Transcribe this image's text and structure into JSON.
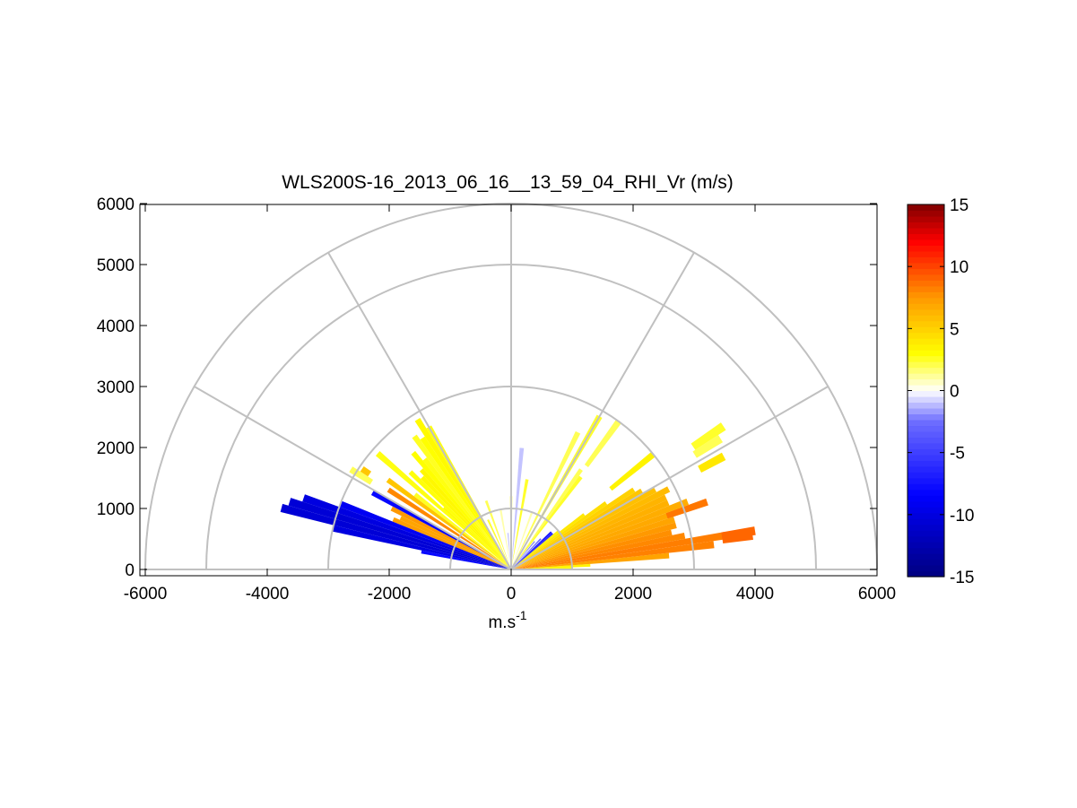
{
  "chart_data": {
    "type": "heatmap",
    "subtype": "polar RHI sector plot",
    "title": "WLS200S-16_2013_06_16__13_59_04_RHI_Vr (m/s)",
    "xlabel": {
      "base": "m.s",
      "sup": "-1"
    },
    "ylabel": "",
    "xlim": [
      -6000,
      6000
    ],
    "ylim": [
      0,
      6000
    ],
    "xticks": [
      -6000,
      -4000,
      -2000,
      0,
      2000,
      4000,
      6000
    ],
    "yticks": [
      0,
      1000,
      2000,
      3000,
      4000,
      5000,
      6000
    ],
    "xtick_labels": [
      "-6000",
      "-4000",
      "-2000",
      "0",
      "2000",
      "4000",
      "6000"
    ],
    "ytick_labels": [
      "0",
      "1000",
      "2000",
      "3000",
      "4000",
      "5000",
      "6000"
    ],
    "polar_grid": {
      "range_rings": [
        1000,
        3000,
        5000,
        6000
      ],
      "spoke_angles_deg": [
        0,
        30,
        60,
        90,
        120,
        150,
        180
      ]
    },
    "colorbar": {
      "range": [
        -15,
        15
      ],
      "ticks": [
        15,
        10,
        5,
        0,
        -5,
        -10,
        -15
      ],
      "tick_labels": [
        "15",
        "10",
        "5",
        "0",
        "-5",
        "-10",
        "-15"
      ],
      "colormap": [
        "#00007f",
        "#0000ff",
        "#6f6fff",
        "#ffffff",
        "#ffff00",
        "#ff9900",
        "#ff0000",
        "#7f0000"
      ]
    },
    "beams": [
      {
        "az": 1.0,
        "r0": 0,
        "r1": 1000,
        "v": 3.0
      },
      {
        "az": 3.0,
        "r0": 0,
        "r1": 1300,
        "v": 3.5
      },
      {
        "az": 5.0,
        "r0": 0,
        "r1": 2600,
        "v": 7.0
      },
      {
        "az": 7.0,
        "r0": 0,
        "r1": 3350,
        "v": 8.2
      },
      {
        "az": 9.0,
        "r0": 0,
        "r1": 3550,
        "v": 8.3
      },
      {
        "az": 11.0,
        "r0": 0,
        "r1": 2900,
        "v": 8.0
      },
      {
        "az": 13.0,
        "r0": 0,
        "r1": 2700,
        "v": 7.8
      },
      {
        "az": 15.0,
        "r0": 0,
        "r1": 2800,
        "v": 7.5
      },
      {
        "az": 17.0,
        "r0": 0,
        "r1": 2800,
        "v": 7.0
      },
      {
        "az": 19.0,
        "r0": 0,
        "r1": 3000,
        "v": 6.8
      },
      {
        "az": 21.0,
        "r0": 0,
        "r1": 3100,
        "v": 6.6
      },
      {
        "az": 23.0,
        "r0": 0,
        "r1": 2800,
        "v": 6.5
      },
      {
        "az": 25.0,
        "r0": 0,
        "r1": 2800,
        "v": 6.3
      },
      {
        "az": 27.0,
        "r0": 0,
        "r1": 2900,
        "v": 6.0
      },
      {
        "az": 29.0,
        "r0": 0,
        "r1": 2700,
        "v": 5.8
      },
      {
        "az": 31.0,
        "r0": 0,
        "r1": 2500,
        "v": 5.5
      },
      {
        "az": 33.0,
        "r0": 0,
        "r1": 2400,
        "v": 5.0
      },
      {
        "az": 35.0,
        "r0": 0,
        "r1": 1900,
        "v": 4.5
      },
      {
        "az": 37.0,
        "r0": 0,
        "r1": 1500,
        "v": 4.0
      },
      {
        "az": 39.0,
        "r0": 0,
        "r1": 1000,
        "v": 3.5
      },
      {
        "az": 41.0,
        "r0": 0,
        "r1": 900,
        "v": -6.0
      },
      {
        "az": 43.0,
        "r0": 0,
        "r1": 900,
        "v": -7.0
      },
      {
        "az": 46.0,
        "r0": 0,
        "r1": 700,
        "v": -3.0
      },
      {
        "az": 50.0,
        "r0": 0,
        "r1": 600,
        "v": -2.0
      },
      {
        "az": 53.0,
        "r0": 0,
        "r1": 1900,
        "v": 2.5
      },
      {
        "az": 55.0,
        "r0": 0,
        "r1": 2000,
        "v": 2.0
      },
      {
        "az": 60.0,
        "r0": 0,
        "r1": 2900,
        "v": 2.5
      },
      {
        "az": 64.0,
        "r0": 0,
        "r1": 2500,
        "v": 2.0
      },
      {
        "az": 70.0,
        "r0": 0,
        "r1": 1000,
        "v": 1.0
      },
      {
        "az": 80.0,
        "r0": 0,
        "r1": 1500,
        "v": 2.5
      },
      {
        "az": 85.0,
        "r0": 0,
        "r1": 2000,
        "v": -1.0
      },
      {
        "az": 90.0,
        "r0": 0,
        "r1": 1200,
        "v": 1.5
      },
      {
        "az": 95.0,
        "r0": 0,
        "r1": 600,
        "v": -1.0
      },
      {
        "az": 100.0,
        "r0": 0,
        "r1": 1000,
        "v": 1.0
      },
      {
        "az": 110.0,
        "r0": 0,
        "r1": 1200,
        "v": 2.0
      },
      {
        "az": 115.0,
        "r0": 0,
        "r1": 900,
        "v": 2.5
      },
      {
        "az": 120.0,
        "r0": 0,
        "r1": 2700,
        "v": 2.8
      },
      {
        "az": 122.0,
        "r0": 0,
        "r1": 2900,
        "v": 3.2
      },
      {
        "az": 124.0,
        "r0": 0,
        "r1": 2600,
        "v": 3.0
      },
      {
        "az": 126.0,
        "r0": 0,
        "r1": 2700,
        "v": 2.6
      },
      {
        "az": 128.0,
        "r0": 0,
        "r1": 2300,
        "v": 2.8
      },
      {
        "az": 130.0,
        "r0": 0,
        "r1": 2500,
        "v": 3.0
      },
      {
        "az": 132.0,
        "r0": 0,
        "r1": 2200,
        "v": 3.3
      },
      {
        "az": 134.0,
        "r0": 0,
        "r1": 2100,
        "v": 3.2
      },
      {
        "az": 136.0,
        "r0": 0,
        "r1": 2300,
        "v": 2.9
      },
      {
        "az": 138.0,
        "r0": 0,
        "r1": 1500,
        "v": 3.2
      },
      {
        "az": 139.0,
        "r0": 0,
        "r1": 2900,
        "v": 2.8
      },
      {
        "az": 142.0,
        "r0": 0,
        "r1": 2000,
        "v": 2.6
      },
      {
        "az": 144.0,
        "r0": 0,
        "r1": 2500,
        "v": 5.5
      },
      {
        "az": 147.0,
        "r0": 0,
        "r1": 2400,
        "v": 8.0
      },
      {
        "az": 151.0,
        "r0": 0,
        "r1": 2600,
        "v": -8.0
      },
      {
        "az": 153.0,
        "r0": 0,
        "r1": 2200,
        "v": 7.5
      },
      {
        "az": 155.0,
        "r0": 0,
        "r1": 2000,
        "v": 7.0
      },
      {
        "az": 157.0,
        "r0": 0,
        "r1": 2100,
        "v": 7.3
      },
      {
        "az": 159.0,
        "r0": 0,
        "r1": 3000,
        "v": -9.0
      },
      {
        "az": 161.0,
        "r0": 0,
        "r1": 3600,
        "v": -10.0
      },
      {
        "az": 163.0,
        "r0": 0,
        "r1": 3800,
        "v": -10.5
      },
      {
        "az": 165.0,
        "r0": 0,
        "r1": 3900,
        "v": -10.5
      },
      {
        "az": 167.0,
        "r0": 0,
        "r1": 3000,
        "v": -10.0
      },
      {
        "az": 169.0,
        "r0": 0,
        "r1": 1500,
        "v": -8.0
      },
      {
        "az": 8.0,
        "r0": 3500,
        "r1": 4000,
        "v": 9.0
      },
      {
        "az": 9.0,
        "r0": 3500,
        "r1": 4050,
        "v": 9.0
      },
      {
        "az": 19.0,
        "r0": 2700,
        "r1": 3400,
        "v": 8.5
      },
      {
        "az": 28.0,
        "r0": 3500,
        "r1": 3950,
        "v": 4.0
      },
      {
        "az": 32.0,
        "r0": 3550,
        "r1": 4050,
        "v": 2.0
      },
      {
        "az": 34.0,
        "r0": 3600,
        "r1": 4200,
        "v": 2.5
      },
      {
        "az": 39.0,
        "r0": 2100,
        "r1": 3000,
        "v": 3.5
      },
      {
        "az": 54.0,
        "r0": 2100,
        "r1": 3000,
        "v": 2.0
      },
      {
        "az": 148.0,
        "r0": 2700,
        "r1": 3100,
        "v": 2.0
      },
      {
        "az": 146.0,
        "r0": 2800,
        "r1": 2950,
        "v": 5.5
      }
    ]
  }
}
